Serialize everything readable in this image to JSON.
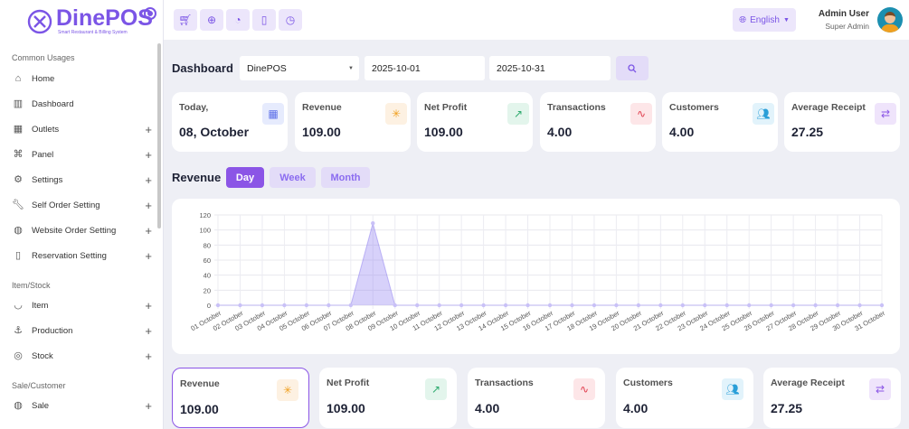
{
  "brand": {
    "name": "DinePOS",
    "tagline": "Smart Restaurant & Billing System"
  },
  "sidebar": {
    "sections": [
      {
        "title": "Common Usages",
        "items": [
          {
            "label": "Home",
            "icon": "home-icon"
          },
          {
            "label": "Dashboard",
            "icon": "bar-chart-icon"
          },
          {
            "label": "Outlets",
            "icon": "grid-icon",
            "expandable": true
          },
          {
            "label": "Panel",
            "icon": "command-icon",
            "expandable": true
          },
          {
            "label": "Settings",
            "icon": "gear-icon",
            "expandable": true
          },
          {
            "label": "Self Order Setting",
            "icon": "wrench-icon",
            "expandable": true
          },
          {
            "label": "Website Order Setting",
            "icon": "globe-icon",
            "expandable": true
          },
          {
            "label": "Reservation Setting",
            "icon": "bookmark-icon",
            "expandable": true
          }
        ]
      },
      {
        "title": "Item/Stock",
        "items": [
          {
            "label": "Item",
            "icon": "shield-icon",
            "expandable": true
          },
          {
            "label": "Production",
            "icon": "anchor-icon",
            "expandable": true
          },
          {
            "label": "Stock",
            "icon": "database-icon",
            "expandable": true
          }
        ]
      },
      {
        "title": "Sale/Customer",
        "items": [
          {
            "label": "Sale",
            "icon": "globe-icon",
            "expandable": true
          }
        ]
      }
    ]
  },
  "header": {
    "toolbar": [
      "cart-icon",
      "download-icon",
      "pie-chart-icon",
      "book-icon",
      "clock-icon"
    ],
    "language": "English",
    "user": {
      "name": "Admin User",
      "role": "Super Admin"
    }
  },
  "filters": {
    "title": "Dashboard",
    "outlet": "DinePOS",
    "start_date": "2025-10-01",
    "end_date": "2025-10-31"
  },
  "top_cards": [
    {
      "label": "Today,",
      "value": "08, October",
      "icon": "calendar-icon",
      "color": "#5b6ee8",
      "bg": "#e6ebfd"
    },
    {
      "label": "Revenue",
      "value": "109.00",
      "icon": "loader-icon",
      "color": "#f0a020",
      "bg": "#fdf1e2"
    },
    {
      "label": "Net Profit",
      "value": "109.00",
      "icon": "trending-up-icon",
      "color": "#2eaa6e",
      "bg": "#e3f5ec"
    },
    {
      "label": "Transactions",
      "value": "4.00",
      "icon": "activity-icon",
      "color": "#e03b4b",
      "bg": "#fde6e8"
    },
    {
      "label": "Customers",
      "value": "4.00",
      "icon": "users-icon",
      "color": "#2a9fd8",
      "bg": "#e2f3fb"
    },
    {
      "label": "Average Receipt",
      "value": "27.25",
      "icon": "repeat-icon",
      "color": "#8b55e6",
      "bg": "#efe4fb"
    }
  ],
  "revenue": {
    "title": "Revenue",
    "tabs": [
      {
        "label": "Day",
        "active": true
      },
      {
        "label": "Week"
      },
      {
        "label": "Month"
      }
    ]
  },
  "chart_data": {
    "type": "area",
    "x": [
      "01 October",
      "02 October",
      "03 October",
      "04 October",
      "05 October",
      "06 October",
      "07 October",
      "08 October",
      "09 October",
      "10 October",
      "11 October",
      "12 October",
      "13 October",
      "14 October",
      "15 October",
      "16 October",
      "17 October",
      "18 October",
      "19 October",
      "20 October",
      "21 October",
      "22 October",
      "23 October",
      "24 October",
      "25 October",
      "26 October",
      "27 October",
      "28 October",
      "29 October",
      "30 October",
      "31 October"
    ],
    "values": [
      0,
      0,
      0,
      0,
      0,
      0,
      0,
      109,
      0,
      0,
      0,
      0,
      0,
      0,
      0,
      0,
      0,
      0,
      0,
      0,
      0,
      0,
      0,
      0,
      0,
      0,
      0,
      0,
      0,
      0,
      0
    ],
    "yticks": [
      0,
      20,
      40,
      60,
      80,
      100,
      120
    ],
    "ylim": [
      0,
      120
    ],
    "grid": true,
    "color": "#8b7cf0"
  },
  "bottom_cards": [
    {
      "label": "Revenue",
      "value": "109.00",
      "icon": "loader-icon",
      "color": "#f0a020",
      "bg": "#fdf1e2",
      "selected": true
    },
    {
      "label": "Net Profit",
      "value": "109.00",
      "icon": "trending-up-icon",
      "color": "#2eaa6e",
      "bg": "#e3f5ec"
    },
    {
      "label": "Transactions",
      "value": "4.00",
      "icon": "activity-icon",
      "color": "#e03b4b",
      "bg": "#fde6e8"
    },
    {
      "label": "Customers",
      "value": "4.00",
      "icon": "users-icon",
      "color": "#2a9fd8",
      "bg": "#e2f3fb"
    },
    {
      "label": "Average Receipt",
      "value": "27.25",
      "icon": "repeat-icon",
      "color": "#8b55e6",
      "bg": "#efe4fb"
    }
  ]
}
